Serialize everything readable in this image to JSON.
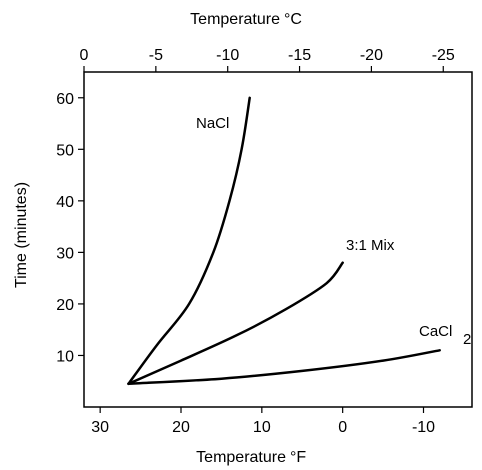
{
  "chart_data": {
    "type": "line",
    "title": "",
    "axes": {
      "x_top": {
        "label": "Temperature",
        "unit": "°C",
        "range": [
          0,
          -27
        ],
        "ticks": [
          "0",
          "-5",
          "-10",
          "-15",
          "-20",
          "-25"
        ]
      },
      "x_bottom": {
        "label": "Temperature",
        "unit": "°F",
        "range": [
          32,
          -16
        ],
        "ticks": [
          "30",
          "20",
          "10",
          "0",
          "-10"
        ]
      },
      "y_left": {
        "label": "Time (minutes)",
        "range": [
          0,
          65
        ],
        "ticks": [
          "10",
          "20",
          "30",
          "40",
          "50",
          "60"
        ]
      }
    },
    "grid": false,
    "legend": "none",
    "line_color": "#000000",
    "series": [
      {
        "name": "NaCl",
        "x_unit": "°F",
        "points": [
          [
            26.5,
            4.5
          ],
          [
            23,
            12
          ],
          [
            19,
            20
          ],
          [
            16,
            30
          ],
          [
            14,
            40
          ],
          [
            12.5,
            50
          ],
          [
            11.5,
            60
          ]
        ]
      },
      {
        "name": "3:1 Mix",
        "x_unit": "°F",
        "points": [
          [
            26.5,
            4.5
          ],
          [
            20,
            9
          ],
          [
            13,
            14
          ],
          [
            7,
            19
          ],
          [
            2,
            24
          ],
          [
            0,
            28
          ]
        ]
      },
      {
        "name": "CaCl",
        "name_subscript": "2",
        "x_unit": "°F",
        "points": [
          [
            26.5,
            4.5
          ],
          [
            15,
            5.5
          ],
          [
            5,
            7
          ],
          [
            -5,
            9
          ],
          [
            -12,
            11
          ]
        ]
      }
    ]
  }
}
